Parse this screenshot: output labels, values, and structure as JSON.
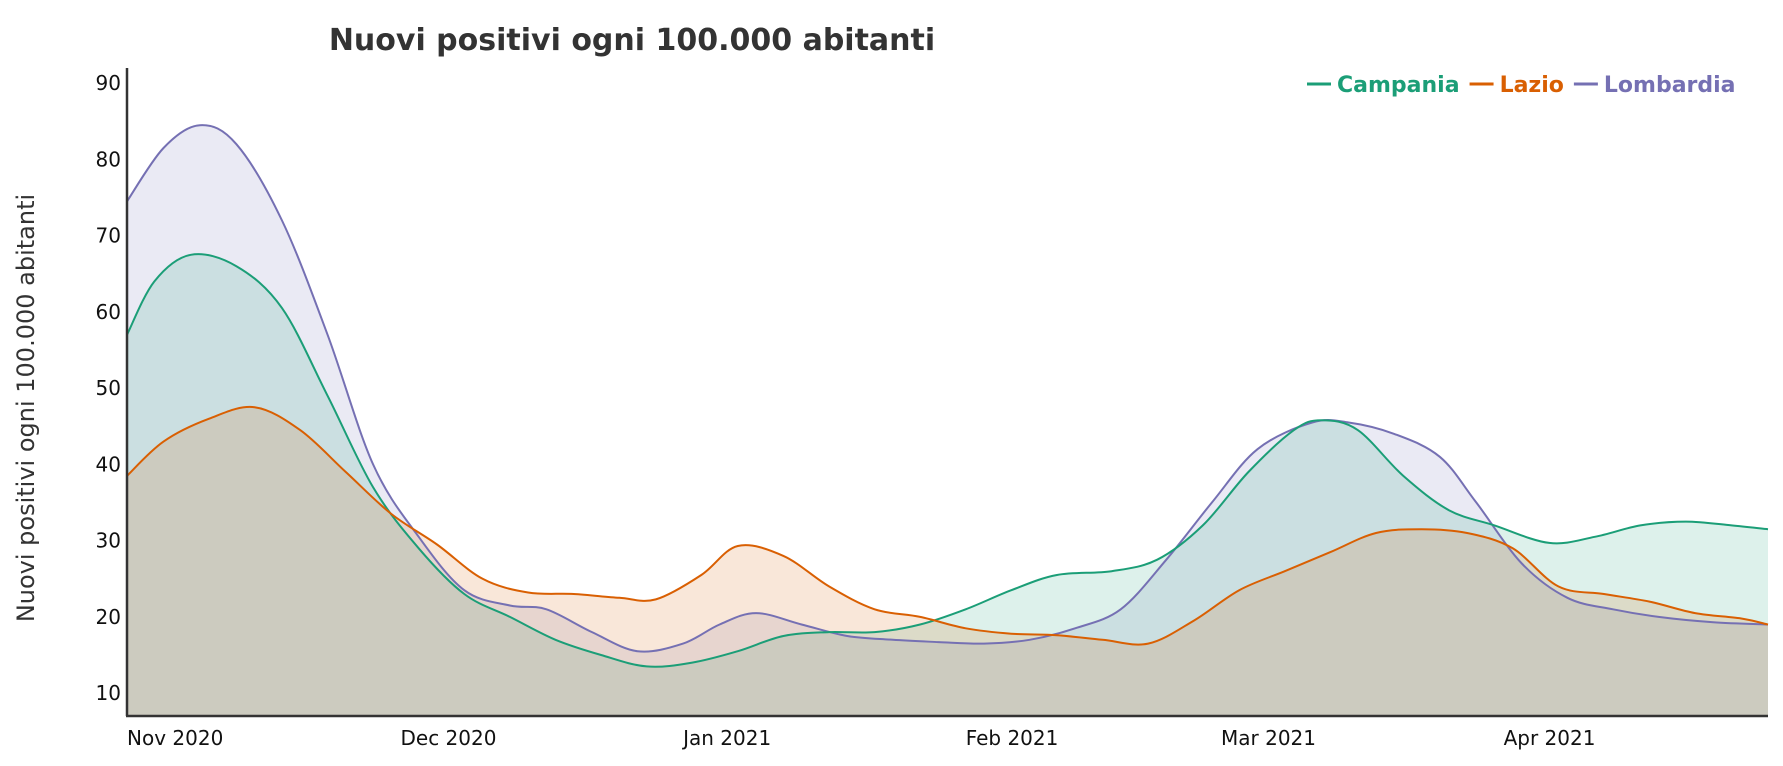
{
  "chart_data": {
    "type": "area",
    "title": "Nuovi positivi ogni 100.000 abitanti",
    "xlabel": "",
    "ylabel": "Nuovi positivi ogni 100.000 abitanti",
    "ylim": [
      7,
      92
    ],
    "yticks": [
      10,
      20,
      30,
      40,
      50,
      60,
      70,
      80,
      90
    ],
    "xlim": [
      "2020-11-01",
      "2021-04-30"
    ],
    "xticks": [
      {
        "date": "2020-11-01",
        "label": "Nov 2020"
      },
      {
        "date": "2020-12-01",
        "label": "Dec 2020"
      },
      {
        "date": "2021-01-01",
        "label": "Jan 2021"
      },
      {
        "date": "2021-02-01",
        "label": "Feb 2021"
      },
      {
        "date": "2021-03-01",
        "label": "Mar 2021"
      },
      {
        "date": "2021-04-01",
        "label": "Apr 2021"
      }
    ],
    "grid": false,
    "legend": "top-right",
    "series": [
      {
        "name": "Lombardia",
        "color": "#7570b3",
        "points": [
          [
            "2020-11-01",
            74.5
          ],
          [
            "2020-11-05",
            81.5
          ],
          [
            "2020-11-09",
            84.5
          ],
          [
            "2020-11-13",
            82.0
          ],
          [
            "2020-11-18",
            72.0
          ],
          [
            "2020-11-23",
            57.0
          ],
          [
            "2020-11-28",
            40.0
          ],
          [
            "2020-12-03",
            30.5
          ],
          [
            "2020-12-08",
            23.5
          ],
          [
            "2020-12-13",
            21.5
          ],
          [
            "2020-12-17",
            21.0
          ],
          [
            "2020-12-22",
            18.0
          ],
          [
            "2020-12-27",
            15.5
          ],
          [
            "2021-01-01",
            16.5
          ],
          [
            "2021-01-05",
            19.0
          ],
          [
            "2021-01-09",
            20.5
          ],
          [
            "2021-01-14",
            19.0
          ],
          [
            "2021-01-19",
            17.5
          ],
          [
            "2021-01-24",
            17.0
          ],
          [
            "2021-01-29",
            16.7
          ],
          [
            "2021-02-03",
            16.5
          ],
          [
            "2021-02-08",
            17.0
          ],
          [
            "2021-02-13",
            18.5
          ],
          [
            "2021-02-18",
            21.0
          ],
          [
            "2021-02-23",
            27.5
          ],
          [
            "2021-02-28",
            35.0
          ],
          [
            "2021-03-05",
            42.0
          ],
          [
            "2021-03-11",
            45.5
          ],
          [
            "2021-03-15",
            45.5
          ],
          [
            "2021-03-20",
            44.0
          ],
          [
            "2021-03-25",
            41.0
          ],
          [
            "2021-03-29",
            35.0
          ],
          [
            "2021-04-03",
            27.0
          ],
          [
            "2021-04-08",
            22.5
          ],
          [
            "2021-04-13",
            21.0
          ],
          [
            "2021-04-18",
            20.0
          ],
          [
            "2021-04-24",
            19.3
          ],
          [
            "2021-04-30",
            19.0
          ]
        ]
      },
      {
        "name": "Campania",
        "color": "#1b9e77",
        "points": [
          [
            "2020-11-01",
            57.0
          ],
          [
            "2020-11-04",
            64.0
          ],
          [
            "2020-11-08",
            67.5
          ],
          [
            "2020-11-13",
            66.0
          ],
          [
            "2020-11-18",
            60.5
          ],
          [
            "2020-11-23",
            49.0
          ],
          [
            "2020-11-28",
            37.0
          ],
          [
            "2020-12-03",
            29.0
          ],
          [
            "2020-12-08",
            23.0
          ],
          [
            "2020-12-13",
            20.0
          ],
          [
            "2020-12-18",
            17.0
          ],
          [
            "2020-12-23",
            15.0
          ],
          [
            "2020-12-28",
            13.5
          ],
          [
            "2021-01-02",
            14.0
          ],
          [
            "2021-01-07",
            15.5
          ],
          [
            "2021-01-12",
            17.5
          ],
          [
            "2021-01-17",
            18.0
          ],
          [
            "2021-01-22",
            18.0
          ],
          [
            "2021-01-27",
            19.0
          ],
          [
            "2021-02-01",
            21.0
          ],
          [
            "2021-02-06",
            23.5
          ],
          [
            "2021-02-11",
            25.5
          ],
          [
            "2021-02-17",
            26.0
          ],
          [
            "2021-02-22",
            27.5
          ],
          [
            "2021-02-27",
            32.0
          ],
          [
            "2021-03-04",
            39.0
          ],
          [
            "2021-03-09",
            44.5
          ],
          [
            "2021-03-12",
            45.8
          ],
          [
            "2021-03-16",
            44.5
          ],
          [
            "2021-03-21",
            38.5
          ],
          [
            "2021-03-26",
            34.0
          ],
          [
            "2021-03-31",
            32.0
          ],
          [
            "2021-04-06",
            29.7
          ],
          [
            "2021-04-11",
            30.5
          ],
          [
            "2021-04-16",
            32.0
          ],
          [
            "2021-04-21",
            32.5
          ],
          [
            "2021-04-26",
            32.0
          ],
          [
            "2021-04-30",
            31.5
          ]
        ]
      },
      {
        "name": "Lazio",
        "color": "#d95f02",
        "points": [
          [
            "2020-11-01",
            38.5
          ],
          [
            "2020-11-05",
            43.0
          ],
          [
            "2020-11-10",
            46.0
          ],
          [
            "2020-11-15",
            47.5
          ],
          [
            "2020-11-20",
            44.5
          ],
          [
            "2020-11-25",
            39.0
          ],
          [
            "2020-11-30",
            33.5
          ],
          [
            "2020-12-05",
            29.5
          ],
          [
            "2020-12-10",
            25.0
          ],
          [
            "2020-12-15",
            23.2
          ],
          [
            "2020-12-20",
            23.0
          ],
          [
            "2020-12-25",
            22.5
          ],
          [
            "2020-12-29",
            22.3
          ],
          [
            "2021-01-03",
            25.5
          ],
          [
            "2021-01-07",
            29.3
          ],
          [
            "2021-01-12",
            28.0
          ],
          [
            "2021-01-17",
            24.0
          ],
          [
            "2021-01-22",
            21.0
          ],
          [
            "2021-01-27",
            20.0
          ],
          [
            "2021-02-01",
            18.5
          ],
          [
            "2021-02-06",
            17.8
          ],
          [
            "2021-02-11",
            17.6
          ],
          [
            "2021-02-16",
            17.0
          ],
          [
            "2021-02-21",
            16.5
          ],
          [
            "2021-02-26",
            19.5
          ],
          [
            "2021-03-03",
            23.5
          ],
          [
            "2021-03-08",
            26.0
          ],
          [
            "2021-03-13",
            28.5
          ],
          [
            "2021-03-18",
            31.0
          ],
          [
            "2021-03-23",
            31.5
          ],
          [
            "2021-03-28",
            31.0
          ],
          [
            "2021-04-02",
            29.0
          ],
          [
            "2021-04-07",
            24.0
          ],
          [
            "2021-04-12",
            23.0
          ],
          [
            "2021-04-17",
            22.0
          ],
          [
            "2021-04-22",
            20.5
          ],
          [
            "2021-04-27",
            19.8
          ],
          [
            "2021-04-30",
            19.0
          ]
        ]
      }
    ],
    "legend_order": [
      "Campania",
      "Lazio",
      "Lombardia"
    ]
  }
}
